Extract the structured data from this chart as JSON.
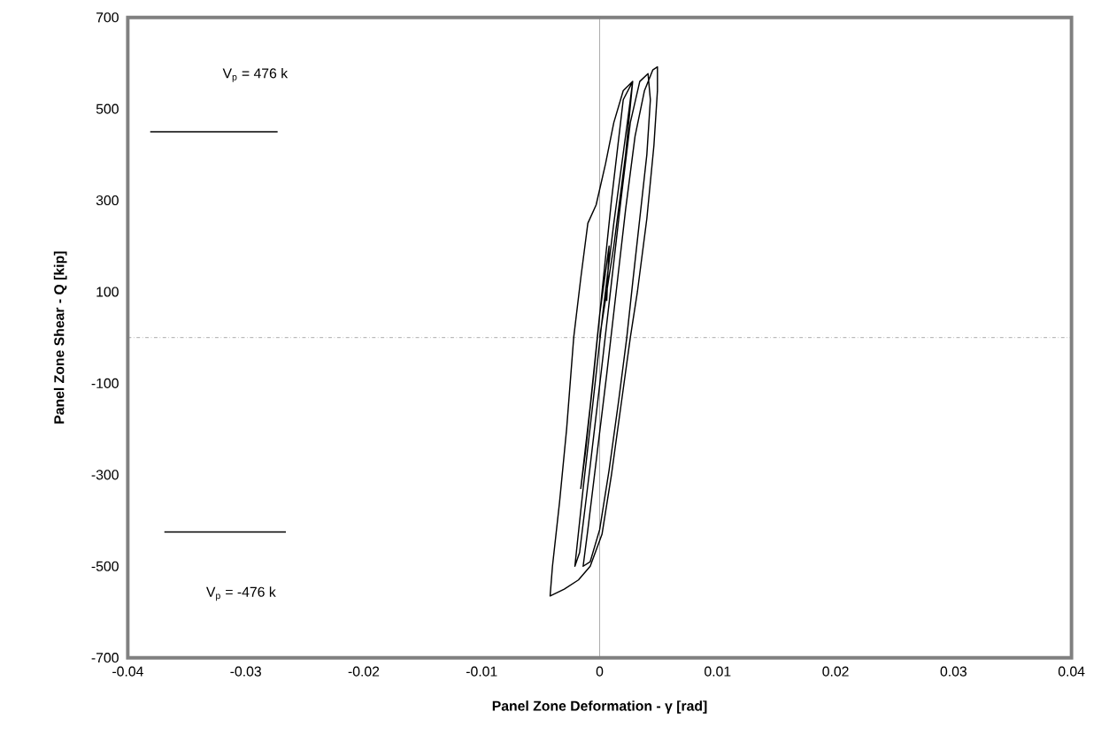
{
  "chart_data": {
    "type": "line",
    "xlabel": "Panel Zone Deformation - γ [rad]",
    "ylabel": "Panel Zone Shear - Q [kip]",
    "xlim": [
      -0.04,
      0.04
    ],
    "ylim": [
      -700,
      700
    ],
    "xticks": [
      -0.04,
      -0.03,
      -0.02,
      -0.01,
      0,
      0.01,
      0.02,
      0.03,
      0.04
    ],
    "yticks": [
      700,
      500,
      300,
      100,
      -100,
      -300,
      -500,
      -700
    ],
    "ref_lines": [
      {
        "axis": "x",
        "value": 0,
        "color": "#808080",
        "line_style": "solid"
      },
      {
        "axis": "y",
        "value": 0,
        "color": "#808080"
      }
    ],
    "annotations": [
      "V$_{p}$ = 476 k",
      "V$_{p}$ = -476 k"
    ],
    "series": [
      {
        "color": "#000000",
        "x": [
          0,
          0.0012,
          0.0022,
          0.0028,
          0.0024,
          0.0012,
          0.0003,
          -0.0006,
          -0.0014,
          -0.0021,
          -0.0017,
          -0.0008,
          0.0002,
          0.001,
          0.0018,
          0.0026,
          0.0034,
          0.0041,
          0.0043,
          0.004,
          0.0034,
          0.0028,
          0.0023,
          0.0016,
          0.0008,
          0,
          -0.0008,
          -0.0014,
          -0.001,
          -0.0002,
          0.0006,
          0.0014,
          0.0022,
          0.003,
          0.0038,
          0.0045,
          0.0049,
          0.0049,
          0.0046,
          0.004,
          0.0032,
          0.0026,
          0.0018,
          0.001,
          0.0002,
          -0.0008,
          -0.0018,
          -0.003,
          -0.0042,
          -0.004,
          -0.0034,
          -0.0028,
          -0.0022,
          -0.0016,
          -0.001,
          -0.0003,
          0.0005,
          0.0012,
          0.002,
          0.0028,
          0.002,
          0.001,
          0.0002,
          -0.0005,
          -0.0012,
          -0.0016,
          -0.0008,
          0,
          0.0008,
          0.0006
        ],
        "values": [
          0,
          200,
          400,
          560,
          480,
          250,
          60,
          -150,
          -330,
          -500,
          -470,
          -280,
          -60,
          120,
          300,
          470,
          560,
          577,
          520,
          400,
          260,
          120,
          0,
          -140,
          -290,
          -420,
          -490,
          -500,
          -420,
          -250,
          -80,
          100,
          280,
          440,
          540,
          585,
          592,
          540,
          420,
          260,
          100,
          0,
          -150,
          -300,
          -430,
          -500,
          -530,
          -550,
          -565,
          -500,
          -360,
          -200,
          0,
          130,
          250,
          290,
          380,
          470,
          540,
          560,
          520,
          300,
          100,
          -80,
          -250,
          -330,
          -150,
          50,
          200,
          80
        ]
      },
      {
        "color": "#000000",
        "x": [
          -0.0381,
          -0.0273
        ],
        "values": [
          450,
          450
        ]
      },
      {
        "color": "#000000",
        "x": [
          -0.0369,
          -0.0266
        ],
        "values": [
          -425,
          -425
        ]
      }
    ]
  }
}
